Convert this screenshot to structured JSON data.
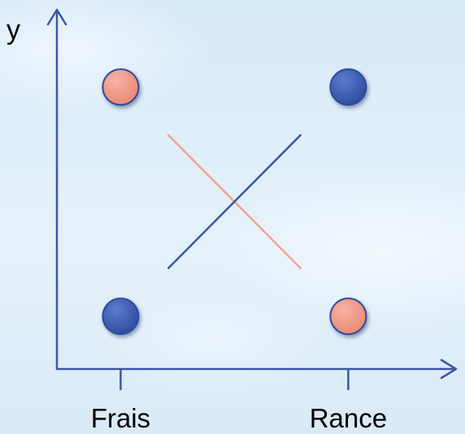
{
  "colors": {
    "blue": "#3a56a8",
    "salmon": "#f0a391",
    "point_blue": "#3b5bb0",
    "point_salmon": "#f29a87"
  },
  "chart_data": {
    "type": "line",
    "title": "",
    "xlabel": "",
    "ylabel": "y",
    "categories": [
      "Frais",
      "Rance"
    ],
    "xlim": [
      -0.28,
      1.47
    ],
    "ylim": [
      -0.23,
      1.33
    ],
    "grid": false,
    "legend": "none",
    "series": [
      {
        "color": "#f29a87",
        "line_color": "#f0a391",
        "values": [
          1,
          0
        ]
      },
      {
        "color": "#3b5bb0",
        "line_color": "#3a56a8",
        "values": [
          0,
          1
        ]
      }
    ]
  }
}
